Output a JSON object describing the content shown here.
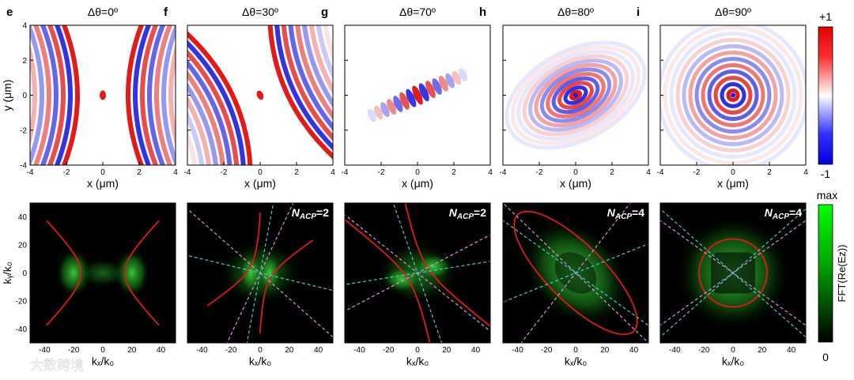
{
  "chart_data": {
    "type": "heatmap",
    "top_row": {
      "xlabel": "x (μm)",
      "ylabel": "y (μm)",
      "xlim": [
        -4,
        4
      ],
      "ylim": [
        -4,
        4
      ],
      "xticks": [
        "-4",
        "-2",
        "0",
        "2",
        "4"
      ],
      "yticks": [
        "4",
        "2",
        "0",
        "-2",
        "-4"
      ],
      "colorbar": {
        "top": "+1",
        "bottom": "-1"
      },
      "panels": [
        {
          "letter": "e",
          "title": "Δθ=0º",
          "angle_deg": 0
        },
        {
          "letter": "f",
          "title": "Δθ=30º",
          "angle_deg": 30
        },
        {
          "letter": "g",
          "title": "Δθ=70º",
          "angle_deg": 70
        },
        {
          "letter": "h",
          "title": "Δθ=80º",
          "angle_deg": 80
        },
        {
          "letter": "i",
          "title": "Δθ=90º",
          "angle_deg": 90
        }
      ]
    },
    "bottom_row": {
      "xlabel": "kₓ/k₀",
      "ylabel": "kᵧ/k₀",
      "xlim": [
        -50,
        50
      ],
      "ylim": [
        -50,
        50
      ],
      "xticks": [
        "-40",
        "-20",
        "0",
        "20",
        "40"
      ],
      "yticks": [
        "40",
        "20",
        "0",
        "-20",
        "-40"
      ],
      "colorbar": {
        "top": "max",
        "bottom": "0",
        "label": "FFT(Re(Ez))"
      },
      "panels": [
        {
          "annotation": ""
        },
        {
          "annotation": "N_ACP=2"
        },
        {
          "annotation": "N_ACP=2"
        },
        {
          "annotation": "N_ACP=4"
        },
        {
          "annotation": "N_ACP=4"
        }
      ]
    },
    "watermark": "大数跨境"
  }
}
